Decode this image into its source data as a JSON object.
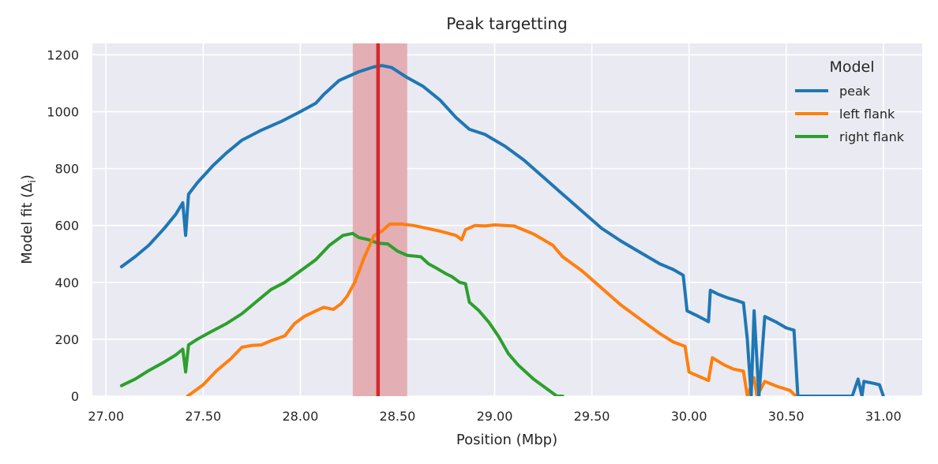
{
  "chart_data": {
    "type": "line",
    "title": "Peak targetting",
    "xlabel": "Position (Mbp)",
    "ylabel": "Model fit (Δ",
    "ylabel_sub": "i",
    "ylabel_close": ")",
    "xlim": [
      26.93,
      31.2
    ],
    "ylim": [
      0,
      1240
    ],
    "xticks": [
      27.0,
      27.5,
      28.0,
      28.5,
      29.0,
      29.5,
      30.0,
      30.5,
      31.0
    ],
    "xtick_labels": [
      "27.00",
      "27.50",
      "28.00",
      "28.50",
      "29.00",
      "29.50",
      "30.00",
      "30.50",
      "31.00"
    ],
    "yticks": [
      0,
      200,
      400,
      600,
      800,
      1000,
      1200
    ],
    "ytick_labels": [
      "0",
      "200",
      "400",
      "600",
      "800",
      "1000",
      "1200"
    ],
    "grid": true,
    "legend": {
      "title": "Model",
      "position": "top-right"
    },
    "highlight_band": {
      "x0": 28.27,
      "x1": 28.55,
      "color": "#e3aeb4"
    },
    "highlight_line": {
      "x": 28.4,
      "color": "#d62728"
    },
    "colors": {
      "background": "#eaeaf2",
      "grid": "#ffffff",
      "text": "#262626"
    },
    "series": [
      {
        "name": "peak",
        "color": "#1f77b4",
        "points": [
          [
            27.08,
            455
          ],
          [
            27.15,
            490
          ],
          [
            27.22,
            530
          ],
          [
            27.3,
            590
          ],
          [
            27.36,
            640
          ],
          [
            27.395,
            680
          ],
          [
            27.41,
            565
          ],
          [
            27.425,
            710
          ],
          [
            27.47,
            750
          ],
          [
            27.55,
            810
          ],
          [
            27.62,
            855
          ],
          [
            27.7,
            900
          ],
          [
            27.8,
            935
          ],
          [
            27.9,
            965
          ],
          [
            28.0,
            1000
          ],
          [
            28.08,
            1030
          ],
          [
            28.12,
            1060
          ],
          [
            28.2,
            1110
          ],
          [
            28.3,
            1140
          ],
          [
            28.38,
            1158
          ],
          [
            28.42,
            1162
          ],
          [
            28.47,
            1155
          ],
          [
            28.55,
            1120
          ],
          [
            28.63,
            1090
          ],
          [
            28.72,
            1040
          ],
          [
            28.8,
            980
          ],
          [
            28.87,
            938
          ],
          [
            28.95,
            920
          ],
          [
            29.05,
            880
          ],
          [
            29.15,
            830
          ],
          [
            29.25,
            770
          ],
          [
            29.35,
            710
          ],
          [
            29.45,
            650
          ],
          [
            29.55,
            590
          ],
          [
            29.65,
            545
          ],
          [
            29.75,
            505
          ],
          [
            29.85,
            465
          ],
          [
            29.92,
            445
          ],
          [
            29.97,
            425
          ],
          [
            29.99,
            300
          ],
          [
            30.05,
            280
          ],
          [
            30.1,
            262
          ],
          [
            30.11,
            372
          ],
          [
            30.15,
            358
          ],
          [
            30.2,
            345
          ],
          [
            30.25,
            335
          ],
          [
            30.28,
            328
          ],
          [
            30.3,
            200
          ],
          [
            30.32,
            0
          ],
          [
            30.335,
            300
          ],
          [
            30.36,
            0
          ],
          [
            30.39,
            280
          ],
          [
            30.45,
            260
          ],
          [
            30.5,
            240
          ],
          [
            30.54,
            232
          ],
          [
            30.56,
            0
          ],
          [
            30.84,
            0
          ],
          [
            30.87,
            60
          ],
          [
            30.89,
            0
          ],
          [
            30.9,
            52
          ],
          [
            30.95,
            45
          ],
          [
            30.98,
            40
          ],
          [
            31.0,
            0
          ]
        ]
      },
      {
        "name": "left flank",
        "color": "#ff7f0e",
        "points": [
          [
            27.42,
            0
          ],
          [
            27.45,
            15
          ],
          [
            27.5,
            40
          ],
          [
            27.57,
            90
          ],
          [
            27.64,
            130
          ],
          [
            27.7,
            172
          ],
          [
            27.75,
            178
          ],
          [
            27.8,
            180
          ],
          [
            27.85,
            195
          ],
          [
            27.92,
            212
          ],
          [
            27.97,
            255
          ],
          [
            28.02,
            280
          ],
          [
            28.08,
            300
          ],
          [
            28.12,
            312
          ],
          [
            28.17,
            305
          ],
          [
            28.21,
            325
          ],
          [
            28.24,
            350
          ],
          [
            28.28,
            400
          ],
          [
            28.33,
            490
          ],
          [
            28.38,
            565
          ],
          [
            28.42,
            580
          ],
          [
            28.46,
            605
          ],
          [
            28.52,
            605
          ],
          [
            28.58,
            600
          ],
          [
            28.65,
            590
          ],
          [
            28.72,
            580
          ],
          [
            28.8,
            565
          ],
          [
            28.83,
            550
          ],
          [
            28.85,
            585
          ],
          [
            28.9,
            600
          ],
          [
            28.95,
            598
          ],
          [
            29.0,
            602
          ],
          [
            29.05,
            600
          ],
          [
            29.1,
            598
          ],
          [
            29.2,
            570
          ],
          [
            29.3,
            530
          ],
          [
            29.35,
            490
          ],
          [
            29.45,
            440
          ],
          [
            29.55,
            380
          ],
          [
            29.65,
            320
          ],
          [
            29.75,
            270
          ],
          [
            29.85,
            220
          ],
          [
            29.92,
            190
          ],
          [
            29.98,
            175
          ],
          [
            30.0,
            85
          ],
          [
            30.05,
            70
          ],
          [
            30.1,
            55
          ],
          [
            30.12,
            135
          ],
          [
            30.18,
            110
          ],
          [
            30.23,
            95
          ],
          [
            30.28,
            88
          ],
          [
            30.3,
            0
          ],
          [
            30.335,
            65
          ],
          [
            30.35,
            0
          ],
          [
            30.39,
            52
          ],
          [
            30.45,
            35
          ],
          [
            30.52,
            20
          ],
          [
            30.55,
            0
          ]
        ]
      },
      {
        "name": "right flank",
        "color": "#2ca02c",
        "points": [
          [
            27.08,
            37
          ],
          [
            27.15,
            60
          ],
          [
            27.22,
            90
          ],
          [
            27.3,
            120
          ],
          [
            27.36,
            145
          ],
          [
            27.395,
            165
          ],
          [
            27.41,
            85
          ],
          [
            27.425,
            180
          ],
          [
            27.47,
            200
          ],
          [
            27.55,
            230
          ],
          [
            27.62,
            255
          ],
          [
            27.7,
            290
          ],
          [
            27.77,
            330
          ],
          [
            27.85,
            375
          ],
          [
            27.92,
            400
          ],
          [
            28.0,
            440
          ],
          [
            28.08,
            480
          ],
          [
            28.15,
            530
          ],
          [
            28.22,
            565
          ],
          [
            28.27,
            572
          ],
          [
            28.3,
            558
          ],
          [
            28.35,
            550
          ],
          [
            28.4,
            538
          ],
          [
            28.45,
            535
          ],
          [
            28.5,
            510
          ],
          [
            28.55,
            495
          ],
          [
            28.62,
            490
          ],
          [
            28.66,
            465
          ],
          [
            28.7,
            450
          ],
          [
            28.75,
            430
          ],
          [
            28.78,
            420
          ],
          [
            28.82,
            400
          ],
          [
            28.85,
            395
          ],
          [
            28.87,
            330
          ],
          [
            28.92,
            300
          ],
          [
            28.97,
            260
          ],
          [
            29.02,
            210
          ],
          [
            29.07,
            150
          ],
          [
            29.12,
            110
          ],
          [
            29.2,
            60
          ],
          [
            29.27,
            25
          ],
          [
            29.32,
            0
          ],
          [
            29.35,
            0
          ]
        ]
      }
    ]
  }
}
